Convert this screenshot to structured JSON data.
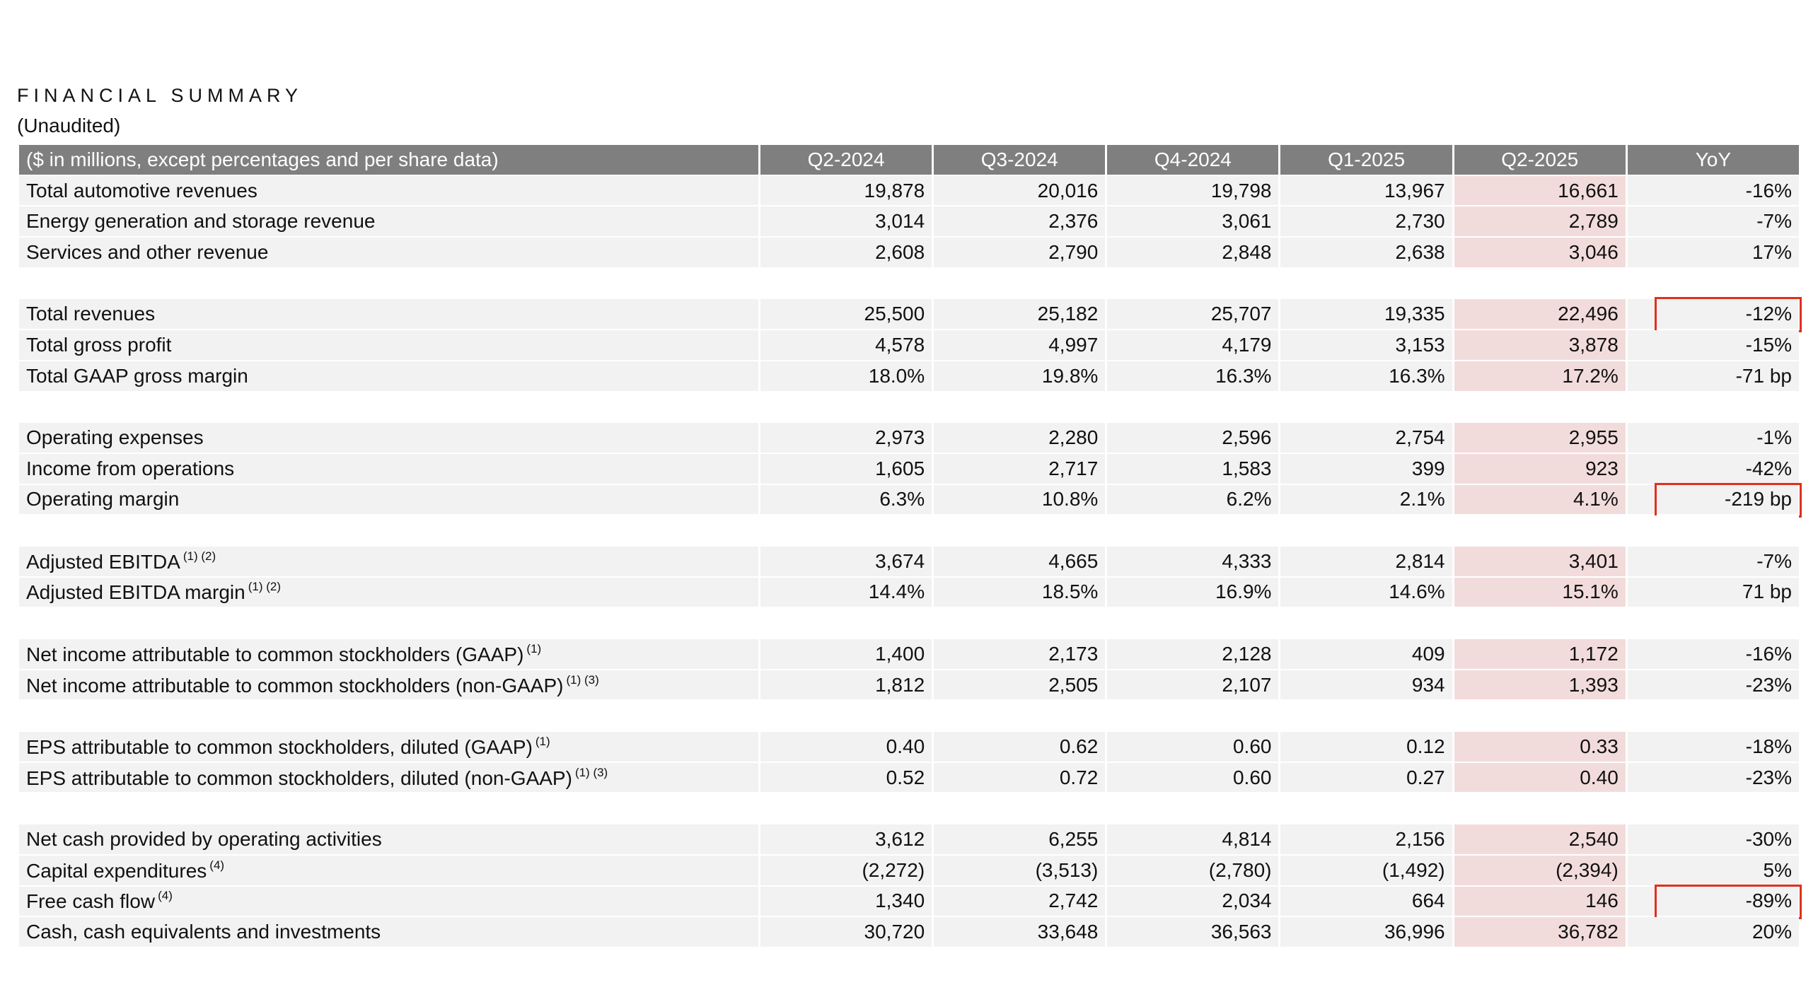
{
  "header": {
    "title": "FINANCIAL SUMMARY",
    "subtitle": "(Unaudited)"
  },
  "table": {
    "columns": [
      "($ in millions, except percentages and per share data)",
      "Q2-2024",
      "Q3-2024",
      "Q4-2024",
      "Q1-2025",
      "Q2-2025",
      "YoY"
    ],
    "groups": [
      {
        "rows": [
          {
            "label": "Total automotive revenues",
            "cells": [
              "19,878",
              "20,016",
              "19,798",
              "13,967",
              "16,661",
              "-16%"
            ]
          },
          {
            "label": "Energy generation and storage revenue",
            "cells": [
              "3,014",
              "2,376",
              "3,061",
              "2,730",
              "2,789",
              "-7%"
            ]
          },
          {
            "label": "Services and other revenue",
            "cells": [
              "2,608",
              "2,790",
              "2,848",
              "2,638",
              "3,046",
              "17%"
            ]
          }
        ]
      },
      {
        "rows": [
          {
            "label": "Total revenues",
            "cells": [
              "25,500",
              "25,182",
              "25,707",
              "19,335",
              "22,496",
              "-12%"
            ],
            "boxed": true
          },
          {
            "label": "Total gross profit",
            "cells": [
              "4,578",
              "4,997",
              "4,179",
              "3,153",
              "3,878",
              "-15%"
            ]
          },
          {
            "label": "Total GAAP gross margin",
            "cells": [
              "18.0%",
              "19.8%",
              "16.3%",
              "16.3%",
              "17.2%",
              "-71 bp"
            ]
          }
        ]
      },
      {
        "rows": [
          {
            "label": "Operating expenses",
            "cells": [
              "2,973",
              "2,280",
              "2,596",
              "2,754",
              "2,955",
              "-1%"
            ]
          },
          {
            "label": "Income from operations",
            "cells": [
              "1,605",
              "2,717",
              "1,583",
              "399",
              "923",
              "-42%"
            ]
          },
          {
            "label": "Operating margin",
            "cells": [
              "6.3%",
              "10.8%",
              "6.2%",
              "2.1%",
              "4.1%",
              "-219 bp"
            ],
            "boxed": true
          }
        ]
      },
      {
        "rows": [
          {
            "label": "Adjusted EBITDA",
            "note": "(1) (2)",
            "cells": [
              "3,674",
              "4,665",
              "4,333",
              "2,814",
              "3,401",
              "-7%"
            ]
          },
          {
            "label": "Adjusted EBITDA margin",
            "note": "(1) (2)",
            "cells": [
              "14.4%",
              "18.5%",
              "16.9%",
              "14.6%",
              "15.1%",
              "71 bp"
            ]
          }
        ]
      },
      {
        "rows": [
          {
            "label": "Net income attributable to common stockholders (GAAP)",
            "note": "(1)",
            "cells": [
              "1,400",
              "2,173",
              "2,128",
              "409",
              "1,172",
              "-16%"
            ]
          },
          {
            "label": "Net income attributable to common stockholders (non-GAAP)",
            "note": "(1) (3)",
            "cells": [
              "1,812",
              "2,505",
              "2,107",
              "934",
              "1,393",
              "-23%"
            ]
          }
        ]
      },
      {
        "rows": [
          {
            "label": "EPS attributable to common stockholders, diluted (GAAP)",
            "note": "(1)",
            "cells": [
              "0.40",
              "0.62",
              "0.60",
              "0.12",
              "0.33",
              "-18%"
            ]
          },
          {
            "label": "EPS attributable to common stockholders, diluted (non-GAAP)",
            "note": "(1) (3)",
            "cells": [
              "0.52",
              "0.72",
              "0.60",
              "0.27",
              "0.40",
              "-23%"
            ]
          }
        ]
      },
      {
        "rows": [
          {
            "label": "Net cash provided by operating activities",
            "cells": [
              "3,612",
              "6,255",
              "4,814",
              "2,156",
              "2,540",
              "-30%"
            ]
          },
          {
            "label": "Capital expenditures",
            "note": "(4)",
            "cells": [
              "(2,272)",
              "(3,513)",
              "(2,780)",
              "(1,492)",
              "(2,394)",
              "5%"
            ]
          },
          {
            "label": "Free cash flow",
            "note": "(4)",
            "cells": [
              "1,340",
              "2,742",
              "2,034",
              "664",
              "146",
              "-89%"
            ],
            "boxed": true
          },
          {
            "label": "Cash, cash equivalents and investments",
            "cells": [
              "30,720",
              "33,648",
              "36,563",
              "36,996",
              "36,782",
              "20%"
            ]
          }
        ]
      }
    ]
  }
}
